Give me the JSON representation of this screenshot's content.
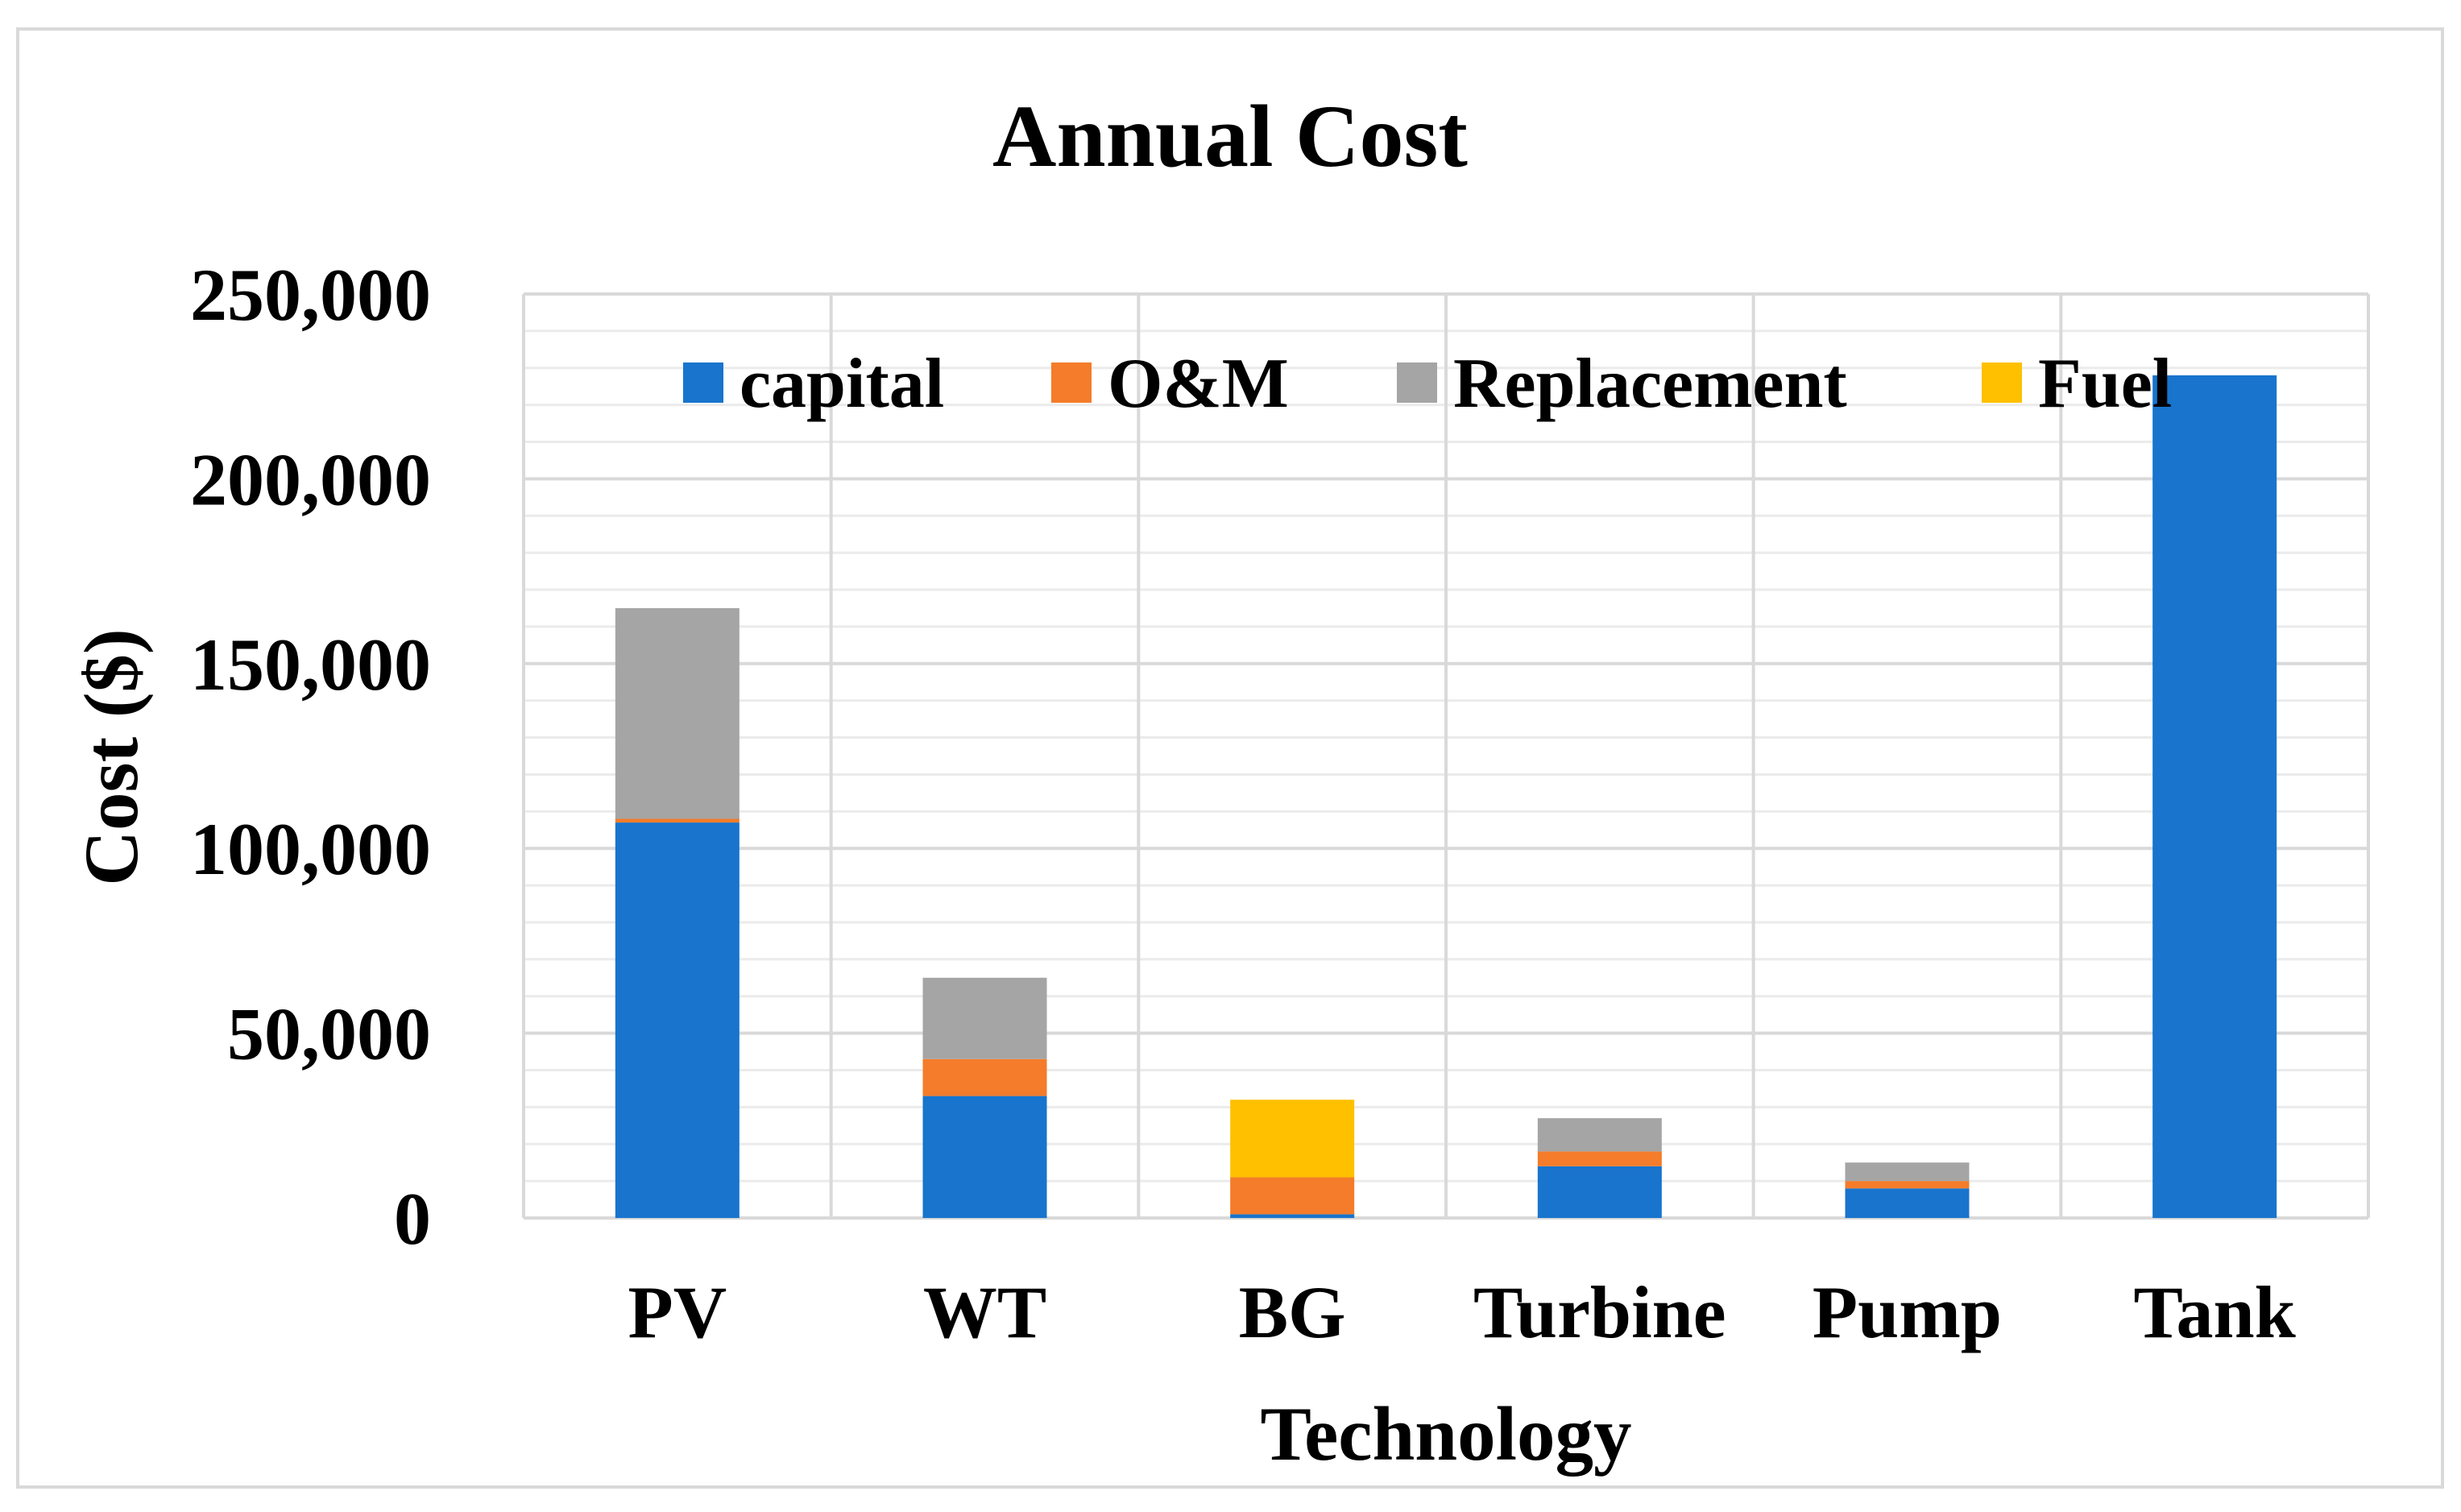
{
  "chart_data": {
    "type": "bar",
    "stacked": true,
    "title": "Annual Cost",
    "xlabel": "Technology",
    "ylabel": "Cost ($)",
    "ylim": [
      0,
      250000
    ],
    "yticks": [
      0,
      50000,
      100000,
      150000,
      200000,
      250000
    ],
    "ytick_labels": [
      "0",
      "50,000",
      "100,000",
      "150,000",
      "200,000",
      "250,000"
    ],
    "categories": [
      "PV",
      "WT",
      "BG",
      "Turbine",
      "Pump",
      "Tank"
    ],
    "series": [
      {
        "name": "capital",
        "color": "#1874CD",
        "values": [
          107000,
          33000,
          1000,
          14000,
          8000,
          228000
        ]
      },
      {
        "name": "O&M",
        "color": "#F47C2A",
        "values": [
          1000,
          10000,
          10000,
          4000,
          2000,
          0
        ]
      },
      {
        "name": "Replacement",
        "color": "#A5A5A5",
        "values": [
          57000,
          22000,
          0,
          9000,
          5000,
          0
        ]
      },
      {
        "name": "Fuel",
        "color": "#FFC000",
        "values": [
          0,
          0,
          21000,
          0,
          0,
          0
        ]
      }
    ],
    "legend_position": "top"
  }
}
